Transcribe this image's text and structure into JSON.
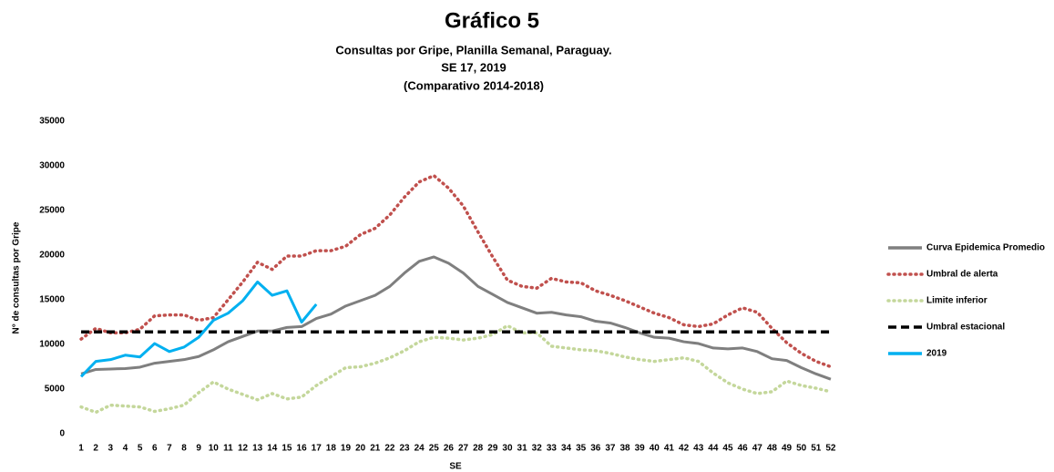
{
  "chart_data": {
    "type": "line",
    "title": "Gráfico 5",
    "subtitle": [
      "Consultas por Gripe, Planilla Semanal, Paraguay.",
      "SE 17, 2019",
      "(Comparativo 2014-2018)"
    ],
    "x_label": "SE",
    "y_label": "N° de consultas por Gripe",
    "categories": [
      "1",
      "2",
      "3",
      "4",
      "5",
      "6",
      "7",
      "8",
      "9",
      "10",
      "11",
      "12",
      "13",
      "14",
      "15",
      "16",
      "17",
      "18",
      "19",
      "20",
      "21",
      "22",
      "23",
      "24",
      "25",
      "26",
      "27",
      "28",
      "29",
      "30",
      "31",
      "32",
      "33",
      "34",
      "35",
      "36",
      "37",
      "38",
      "39",
      "40",
      "41",
      "42",
      "43",
      "44",
      "45",
      "46",
      "47",
      "48",
      "49",
      "50",
      "51",
      "52"
    ],
    "ylim": [
      0,
      35000
    ],
    "yticks": [
      0,
      5000,
      10000,
      15000,
      20000,
      25000,
      30000,
      35000
    ],
    "grid": false,
    "legend": "right",
    "series": [
      {
        "name": "Curva Epidemica Promedio",
        "color": "#7f7f7f",
        "dash": "solid",
        "values": [
          6700,
          7200,
          7250,
          7300,
          7450,
          7900,
          8100,
          8300,
          8650,
          9400,
          10300,
          10900,
          11500,
          11500,
          11900,
          12000,
          12900,
          13400,
          14300,
          14900,
          15500,
          16500,
          18000,
          19300,
          19800,
          19100,
          18000,
          16500,
          15600,
          14700,
          14100,
          13500,
          13600,
          13300,
          13100,
          12600,
          12400,
          11900,
          11300,
          10800,
          10700,
          10300,
          10100,
          9600,
          9500,
          9600,
          9200,
          8400,
          8200,
          7400,
          6700,
          6100
        ]
      },
      {
        "name": "Umbral de alerta",
        "color": "#c0504d",
        "dash": "dotted",
        "values": [
          10600,
          11800,
          11300,
          11300,
          11700,
          13200,
          13300,
          13300,
          12700,
          13000,
          15000,
          17000,
          19200,
          18400,
          19900,
          19900,
          20500,
          20500,
          21000,
          22300,
          23000,
          24500,
          26500,
          28200,
          28900,
          27500,
          25500,
          22600,
          19800,
          17200,
          16500,
          16300,
          17400,
          17000,
          16900,
          16000,
          15500,
          14900,
          14200,
          13500,
          13000,
          12200,
          12000,
          12300,
          13300,
          14100,
          13600,
          11800,
          10200,
          9000,
          8100,
          7500
        ]
      },
      {
        "name": "Limite inferior",
        "color": "#c4d79b",
        "dash": "dotted",
        "values": [
          3000,
          2400,
          3200,
          3100,
          3000,
          2500,
          2800,
          3200,
          4600,
          5800,
          5000,
          4400,
          3800,
          4500,
          3900,
          4100,
          5400,
          6400,
          7400,
          7500,
          7900,
          8500,
          9300,
          10300,
          10800,
          10700,
          10500,
          10700,
          11100,
          12100,
          11300,
          11300,
          9800,
          9600,
          9400,
          9300,
          9000,
          8600,
          8300,
          8100,
          8300,
          8500,
          8100,
          6800,
          5700,
          5000,
          4500,
          4700,
          5900,
          5400,
          5100,
          4700
        ]
      },
      {
        "name": "Umbral estacional",
        "color": "#000000",
        "dash": "dashed",
        "values": [
          11400,
          11400,
          11400,
          11400,
          11400,
          11400,
          11400,
          11400,
          11400,
          11400,
          11400,
          11400,
          11400,
          11400,
          11400,
          11400,
          11400,
          11400,
          11400,
          11400,
          11400,
          11400,
          11400,
          11400,
          11400,
          11400,
          11400,
          11400,
          11400,
          11400,
          11400,
          11400,
          11400,
          11400,
          11400,
          11400,
          11400,
          11400,
          11400,
          11400,
          11400,
          11400,
          11400,
          11400,
          11400,
          11400,
          11400,
          11400,
          11400,
          11400,
          11400,
          11400
        ]
      },
      {
        "name": "2019",
        "color": "#00b0f0",
        "dash": "solid",
        "values": [
          6400,
          8100,
          8300,
          8800,
          8600,
          10100,
          9200,
          9700,
          10800,
          12700,
          13500,
          14900,
          17000,
          15500,
          16000,
          12500,
          14500,
          null,
          null,
          null,
          null,
          null,
          null,
          null,
          null,
          null,
          null,
          null,
          null,
          null,
          null,
          null,
          null,
          null,
          null,
          null,
          null,
          null,
          null,
          null,
          null,
          null,
          null,
          null,
          null,
          null,
          null,
          null,
          null,
          null,
          null,
          null
        ]
      }
    ]
  }
}
